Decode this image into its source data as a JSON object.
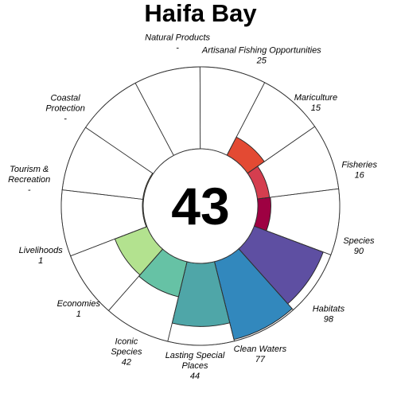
{
  "chart_data": {
    "type": "flower",
    "title": "Haifa Bay",
    "center_score": "43",
    "ylim": [
      0,
      100
    ],
    "petals": [
      {
        "name": "Fisheries",
        "value": 16,
        "display": "16",
        "color": "#9e0142"
      },
      {
        "name": "Species",
        "value": 90,
        "display": "90",
        "color": "#5e4fa2"
      },
      {
        "name": "Habitats",
        "value": 98,
        "display": "98",
        "color": "#3288bd"
      },
      {
        "name": "Clean Waters",
        "value": 77,
        "display": "77",
        "color": "#4fa6a8"
      },
      {
        "name": "Lasting Special Places",
        "value": 44,
        "display": "44",
        "color": "#66c2a5"
      },
      {
        "name": "Iconic Species",
        "value": 42,
        "display": "42",
        "color": "#b3e28f"
      },
      {
        "name": "Economies",
        "value": 1,
        "display": "1",
        "color": "#e6f598"
      },
      {
        "name": "Livelihoods",
        "value": 1,
        "display": "1",
        "color": "#fee08b"
      },
      {
        "name": "Tourism & Recreation",
        "value": null,
        "display": "-",
        "color": "#fdae61"
      },
      {
        "name": "Coastal Protection",
        "value": null,
        "display": "-",
        "color": "#f46d43"
      },
      {
        "name": "Natural Products",
        "value": null,
        "display": "-",
        "color": "#e8875c"
      },
      {
        "name": "Artisanal Fishing Opportunities",
        "value": 25,
        "display": "25",
        "color": "#e34a33"
      },
      {
        "name": "Mariculture",
        "value": 15,
        "display": "15",
        "color": "#d53e4f"
      }
    ]
  }
}
